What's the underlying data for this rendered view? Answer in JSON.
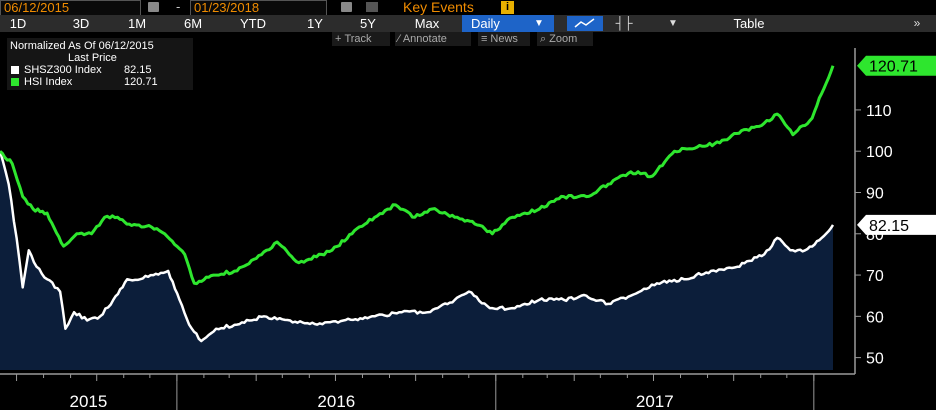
{
  "toolbar": {
    "start_date": "06/12/2015",
    "separator": "-",
    "end_date": "01/23/2018",
    "key_events": "Key Events",
    "info": "i"
  },
  "ranges": [
    "1D",
    "3D",
    "1M",
    "6M",
    "YTD",
    "1Y",
    "5Y",
    "Max"
  ],
  "frequency": "Daily",
  "table_label": "Table",
  "chart_tools": {
    "track": "Track",
    "annotate": "Annotate",
    "news": "News",
    "zoom": "Zoom"
  },
  "legend": {
    "title": "Normalized As Of 06/12/2015",
    "subtitle": "Last Price",
    "items": [
      {
        "name": "SHSZ300 Index",
        "value": "82.15",
        "color": "#ffffff"
      },
      {
        "name": "HSI Index",
        "value": "120.71",
        "color": "#2ee62e"
      }
    ]
  },
  "colors": {
    "hsi_line": "#2ee62e",
    "shsz_line": "#ffffff",
    "shsz_area": "#0c1e3a",
    "accent_orange": "#f08c00",
    "accent_blue": "#1e64c8"
  },
  "chart_data": {
    "type": "line",
    "x_labels": [
      "2015",
      "2016",
      "2017"
    ],
    "y_ticks": [
      50,
      60,
      70,
      80,
      90,
      100,
      110
    ],
    "ylim": [
      47,
      125
    ],
    "x_range": [
      "2015-06-12",
      "2018-01-23"
    ],
    "last_value_labels": [
      "120.71",
      "82.15"
    ],
    "grid": false,
    "series": [
      {
        "name": "HSI Index",
        "color": "#2ee62e",
        "area": false,
        "points": [
          [
            "2015-06-12",
            100
          ],
          [
            "2015-06-26",
            97
          ],
          [
            "2015-07-08",
            89
          ],
          [
            "2015-07-20",
            86
          ],
          [
            "2015-08-05",
            85
          ],
          [
            "2015-08-24",
            77
          ],
          [
            "2015-09-08",
            80
          ],
          [
            "2015-09-25",
            80
          ],
          [
            "2015-10-10",
            84
          ],
          [
            "2015-10-25",
            84
          ],
          [
            "2015-11-10",
            82
          ],
          [
            "2015-11-30",
            82
          ],
          [
            "2015-12-18",
            80
          ],
          [
            "2016-01-10",
            75
          ],
          [
            "2016-01-21",
            68
          ],
          [
            "2016-02-12",
            70
          ],
          [
            "2016-03-10",
            71
          ],
          [
            "2016-04-01",
            74
          ],
          [
            "2016-04-25",
            78
          ],
          [
            "2016-05-20",
            73
          ],
          [
            "2016-06-15",
            75
          ],
          [
            "2016-06-27",
            76
          ],
          [
            "2016-07-20",
            80
          ],
          [
            "2016-08-15",
            84
          ],
          [
            "2016-09-08",
            87
          ],
          [
            "2016-09-30",
            84
          ],
          [
            "2016-10-20",
            86
          ],
          [
            "2016-11-15",
            84
          ],
          [
            "2016-12-05",
            83
          ],
          [
            "2016-12-28",
            80
          ],
          [
            "2017-01-20",
            84
          ],
          [
            "2017-02-20",
            86
          ],
          [
            "2017-03-20",
            89
          ],
          [
            "2017-04-15",
            89
          ],
          [
            "2017-05-10",
            92
          ],
          [
            "2017-06-05",
            95
          ],
          [
            "2017-06-30",
            94
          ],
          [
            "2017-07-25",
            100
          ],
          [
            "2017-08-20",
            101
          ],
          [
            "2017-09-15",
            102
          ],
          [
            "2017-10-10",
            105
          ],
          [
            "2017-10-30",
            106
          ],
          [
            "2017-11-20",
            109
          ],
          [
            "2017-12-08",
            104
          ],
          [
            "2017-12-30",
            108
          ],
          [
            "2018-01-10",
            114
          ],
          [
            "2018-01-23",
            120.71
          ]
        ]
      },
      {
        "name": "SHSZ300 Index",
        "color": "#ffffff",
        "area": true,
        "points": [
          [
            "2015-06-12",
            100
          ],
          [
            "2015-06-22",
            92
          ],
          [
            "2015-07-01",
            79
          ],
          [
            "2015-07-08",
            67
          ],
          [
            "2015-07-15",
            76
          ],
          [
            "2015-07-24",
            72
          ],
          [
            "2015-08-05",
            69
          ],
          [
            "2015-08-20",
            66
          ],
          [
            "2015-08-26",
            57
          ],
          [
            "2015-09-05",
            61
          ],
          [
            "2015-09-20",
            59
          ],
          [
            "2015-10-05",
            60
          ],
          [
            "2015-10-20",
            64
          ],
          [
            "2015-11-05",
            69
          ],
          [
            "2015-11-20",
            69
          ],
          [
            "2015-12-05",
            70
          ],
          [
            "2015-12-22",
            71
          ],
          [
            "2016-01-04",
            64
          ],
          [
            "2016-01-15",
            58
          ],
          [
            "2016-01-29",
            54
          ],
          [
            "2016-02-15",
            57
          ],
          [
            "2016-03-10",
            58
          ],
          [
            "2016-04-10",
            60
          ],
          [
            "2016-05-10",
            59
          ],
          [
            "2016-06-10",
            58
          ],
          [
            "2016-07-10",
            59
          ],
          [
            "2016-08-15",
            60
          ],
          [
            "2016-09-15",
            61
          ],
          [
            "2016-10-15",
            61
          ],
          [
            "2016-11-15",
            64
          ],
          [
            "2016-12-01",
            66
          ],
          [
            "2016-12-25",
            62
          ],
          [
            "2017-01-20",
            62
          ],
          [
            "2017-02-20",
            64
          ],
          [
            "2017-03-20",
            64
          ],
          [
            "2017-04-15",
            65
          ],
          [
            "2017-05-10",
            63
          ],
          [
            "2017-06-05",
            65
          ],
          [
            "2017-07-05",
            68
          ],
          [
            "2017-08-05",
            69
          ],
          [
            "2017-09-05",
            71
          ],
          [
            "2017-10-05",
            72
          ],
          [
            "2017-11-05",
            75
          ],
          [
            "2017-11-20",
            79
          ],
          [
            "2017-12-05",
            76
          ],
          [
            "2017-12-22",
            76
          ],
          [
            "2018-01-10",
            79
          ],
          [
            "2018-01-23",
            82.15
          ]
        ]
      }
    ]
  }
}
